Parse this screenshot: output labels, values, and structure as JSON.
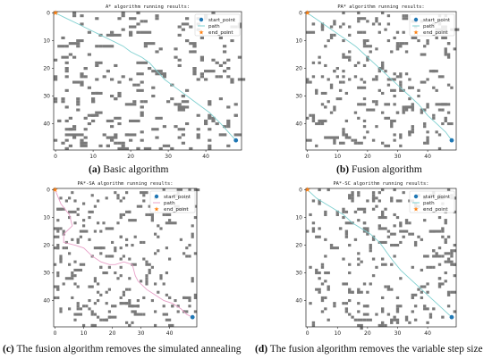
{
  "figure": {
    "colors": {
      "obstacle": "#7a7a7a",
      "start": "#1f77b4",
      "end": "#ff7f0e",
      "path": "#7fd0d0"
    },
    "panels": [
      {
        "id": "a",
        "letter": "(a)",
        "caption": "Basic algorithm"
      },
      {
        "id": "b",
        "letter": "(b)",
        "caption": "Fusion algorithm"
      },
      {
        "id": "c",
        "letter": "(c)",
        "caption": "The fusion algorithm removes the simulated annealing"
      },
      {
        "id": "d",
        "letter": "(d)",
        "caption": "The fusion algorithm removes the variable step size"
      }
    ]
  },
  "chart_data": [
    {
      "type": "scatter",
      "title": "A* algorithm running results:",
      "xticks": [
        0,
        10,
        20,
        30,
        40
      ],
      "yticks": [
        0,
        10,
        20,
        30,
        40
      ],
      "xlim": [
        0,
        49
      ],
      "ylim": [
        49,
        0
      ],
      "grid": false,
      "legend_position": "top-right",
      "series": [
        {
          "name": "start_point",
          "points": [
            [
              48,
              46
            ]
          ],
          "color": "#1f77b4",
          "marker": "circle"
        },
        {
          "name": "path",
          "color": "#7fd0d0",
          "style": "line",
          "points": [
            [
              0,
              0
            ],
            [
              3,
              2
            ],
            [
              6,
              4
            ],
            [
              9,
              6
            ],
            [
              12,
              8
            ],
            [
              15,
              10
            ],
            [
              18,
              12
            ],
            [
              20,
              14
            ],
            [
              23,
              16
            ],
            [
              25,
              18
            ],
            [
              27,
              21
            ],
            [
              29,
              24
            ],
            [
              32,
              27
            ],
            [
              35,
              30
            ],
            [
              38,
              33
            ],
            [
              41,
              36
            ],
            [
              44,
              40
            ],
            [
              46,
              43
            ],
            [
              48,
              46
            ]
          ]
        },
        {
          "name": "end_point",
          "points": [
            [
              0,
              0
            ]
          ],
          "color": "#ff7f0e",
          "marker": "star"
        }
      ]
    },
    {
      "type": "scatter",
      "title": "PA* algorithm running results:",
      "xticks": [
        0,
        10,
        20,
        30,
        40
      ],
      "yticks": [
        0,
        10,
        20,
        30,
        40
      ],
      "xlim": [
        0,
        49
      ],
      "ylim": [
        49,
        0
      ],
      "grid": false,
      "legend_position": "top-right",
      "series": [
        {
          "name": "start_point",
          "points": [
            [
              48,
              46
            ]
          ],
          "color": "#1f77b4",
          "marker": "circle"
        },
        {
          "name": "path",
          "color": "#7fd0d0",
          "style": "line",
          "points": [
            [
              0,
              0
            ],
            [
              4,
              3
            ],
            [
              8,
              6
            ],
            [
              12,
              9
            ],
            [
              16,
              12
            ],
            [
              19,
              15
            ],
            [
              22,
              18
            ],
            [
              25,
              21
            ],
            [
              28,
              24
            ],
            [
              31,
              27
            ],
            [
              34,
              30
            ],
            [
              37,
              33
            ],
            [
              40,
              37
            ],
            [
              43,
              40
            ],
            [
              46,
              43
            ],
            [
              48,
              46
            ]
          ]
        },
        {
          "name": "end_point",
          "points": [
            [
              0,
              0
            ]
          ],
          "color": "#ff7f0e",
          "marker": "star"
        }
      ]
    },
    {
      "type": "scatter",
      "title": "PA*-SA algorithm running results:",
      "xticks": [
        0,
        10,
        20,
        30,
        40
      ],
      "yticks": [
        0,
        10,
        20,
        30,
        40
      ],
      "xlim": [
        0,
        49
      ],
      "ylim": [
        49,
        0
      ],
      "grid": false,
      "legend_position": "top-right",
      "series": [
        {
          "name": "start_point",
          "points": [
            [
              48,
              46
            ]
          ],
          "color": "#1f77b4",
          "marker": "circle"
        },
        {
          "name": "path",
          "color": "#e8a0c8",
          "style": "line",
          "points": [
            [
              0,
              0
            ],
            [
              2,
              5
            ],
            [
              5,
              9
            ],
            [
              6,
              13
            ],
            [
              3,
              16
            ],
            [
              3,
              19
            ],
            [
              7,
              20
            ],
            [
              10,
              21
            ],
            [
              13,
              24
            ],
            [
              16,
              26
            ],
            [
              19,
              27
            ],
            [
              21,
              27
            ],
            [
              24,
              26
            ],
            [
              27,
              27
            ],
            [
              28,
              31
            ],
            [
              29,
              33
            ],
            [
              32,
              36
            ],
            [
              35,
              38
            ],
            [
              38,
              40
            ],
            [
              41,
              41
            ],
            [
              44,
              43
            ],
            [
              46,
              45
            ],
            [
              48,
              46
            ]
          ]
        },
        {
          "name": "end_point",
          "points": [
            [
              0,
              0
            ]
          ],
          "color": "#ff7f0e",
          "marker": "star"
        }
      ]
    },
    {
      "type": "scatter",
      "title": "PA*-SC algorithm running results:",
      "xticks": [
        0,
        10,
        20,
        30,
        40
      ],
      "yticks": [
        0,
        10,
        20,
        30,
        40
      ],
      "xlim": [
        0,
        49
      ],
      "ylim": [
        49,
        0
      ],
      "grid": false,
      "legend_position": "top-right",
      "series": [
        {
          "name": "start_point",
          "points": [
            [
              48,
              46
            ]
          ],
          "color": "#1f77b4",
          "marker": "circle"
        },
        {
          "name": "path",
          "color": "#7fd0d0",
          "style": "line",
          "points": [
            [
              0,
              0
            ],
            [
              3,
              3
            ],
            [
              6,
              5
            ],
            [
              9,
              7
            ],
            [
              12,
              9
            ],
            [
              15,
              12
            ],
            [
              18,
              14
            ],
            [
              21,
              16
            ],
            [
              24,
              19
            ],
            [
              26,
              22
            ],
            [
              28,
              25
            ],
            [
              31,
              29
            ],
            [
              34,
              32
            ],
            [
              37,
              35
            ],
            [
              40,
              38
            ],
            [
              43,
              41
            ],
            [
              46,
              44
            ],
            [
              48,
              46
            ]
          ]
        },
        {
          "name": "end_point",
          "points": [
            [
              0,
              0
            ]
          ],
          "color": "#ff7f0e",
          "marker": "star"
        }
      ]
    }
  ]
}
